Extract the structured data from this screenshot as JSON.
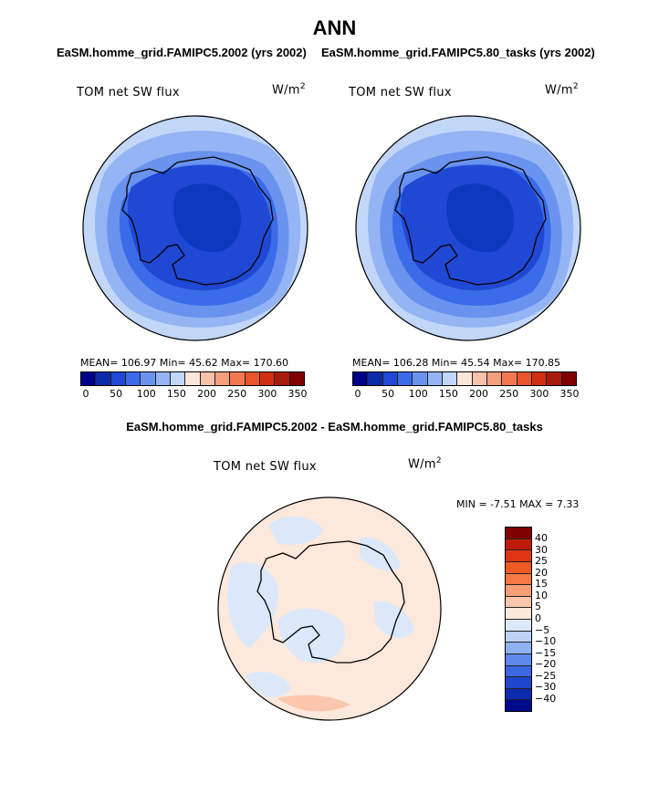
{
  "header": {
    "title": "ANN",
    "left_subtitle": "EaSM.homme_grid.FAMIPC5.2002 (yrs 2002)",
    "right_subtitle": "EaSM.homme_grid.FAMIPC5.80_tasks (yrs 2002)",
    "diff_subtitle": "EaSM.homme_grid.FAMIPC5.2002 - EaSM.homme_grid.FAMIPC5.80_tasks"
  },
  "panels": {
    "left": {
      "variable": "TOM net SW flux",
      "units": "W/m",
      "units_exp": "2",
      "stats": "MEAN= 106.97   Min=   45.62   Max= 170.60"
    },
    "right": {
      "variable": "TOM net SW flux",
      "units": "W/m",
      "units_exp": "2",
      "stats": "MEAN= 106.28   Min=   45.54   Max= 170.85"
    },
    "diff": {
      "variable": "TOM net SW flux",
      "units": "W/m",
      "units_exp": "2",
      "stats": "MIN =   -7.51  MAX =    7.33"
    }
  },
  "colorbar_main": {
    "ticks": [
      "0",
      "50",
      "100",
      "150",
      "200",
      "250",
      "300",
      "350"
    ],
    "colors": [
      "#00008b",
      "#0d2ba8",
      "#1f48d4",
      "#3a6be8",
      "#6a93ef",
      "#94b4f4",
      "#c2d6f8",
      "#fbe6dc",
      "#f7c2a8",
      "#f59f7f",
      "#f2794f",
      "#e8532c",
      "#cf3012",
      "#a81c0b",
      "#7f0000"
    ]
  },
  "colorbar_diff": {
    "ticks": [
      "40",
      "30",
      "25",
      "20",
      "15",
      "10",
      "5",
      "0",
      "−5",
      "−10",
      "−15",
      "−20",
      "−25",
      "−30",
      "−40"
    ],
    "colors": [
      "#7f0000",
      "#bf1a0a",
      "#df3511",
      "#ef5a24",
      "#f57a43",
      "#f79f76",
      "#fac7ad",
      "#fde8dc",
      "#dbe8fa",
      "#bcd3f7",
      "#8fb2f2",
      "#5f8aec",
      "#3c68e3",
      "#1f46cf",
      "#0d2bb0",
      "#000a8c"
    ]
  },
  "map_colors": {
    "deep": "#1f48d4",
    "mid_dark": "#3a6be8",
    "mid": "#6a93ef",
    "light": "#94b4f4",
    "pale": "#c2d6f8",
    "inner": "#0d38c0",
    "diff_base": "#fde8dc",
    "diff_neg": "#dbe8fa",
    "diff_pos": "#fac7ad"
  }
}
